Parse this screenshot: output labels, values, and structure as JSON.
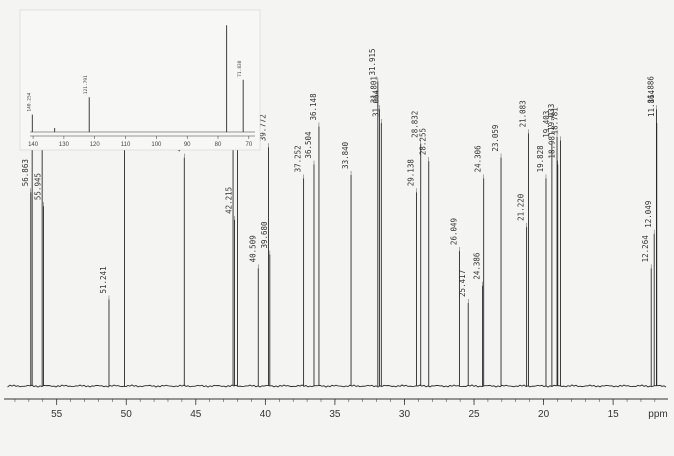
{
  "chart_data": {
    "type": "line",
    "xlabel": "ppm",
    "xlim": [
      58.5,
      11.2
    ],
    "x_reversed": true,
    "x_ticks": [
      55,
      50,
      45,
      40,
      35,
      30,
      25,
      20,
      15
    ],
    "grid": false,
    "peaks": [
      {
        "shift": 56.863,
        "label": "56.863",
        "height": 0.56
      },
      {
        "shift": 56.763,
        "label": "56.763",
        "height": 0.8
      },
      {
        "shift": 56.045,
        "label": "56.045",
        "height": 0.8
      },
      {
        "shift": 55.945,
        "label": "55.945",
        "height": 0.52
      },
      {
        "shift": 51.241,
        "label": "51.241",
        "height": 0.25
      },
      {
        "shift": 50.124,
        "label": "50.124",
        "height": 0.7
      },
      {
        "shift": 45.827,
        "label": "45.827",
        "height": 0.66
      },
      {
        "shift": 42.322,
        "label": "42.322",
        "height": 0.76
      },
      {
        "shift": 42.0,
        "label": "42",
        "height": 0.8
      },
      {
        "shift": 42.215,
        "label": "42.215",
        "height": 0.48
      },
      {
        "shift": 40.509,
        "label": "40.509",
        "height": 0.34
      },
      {
        "shift": 39.772,
        "label": "39.772",
        "height": 0.69
      },
      {
        "shift": 39.68,
        "label": "39.680",
        "height": 0.38
      },
      {
        "shift": 37.252,
        "label": "37.252",
        "height": 0.6
      },
      {
        "shift": 36.504,
        "label": "36.504",
        "height": 0.64
      },
      {
        "shift": 36.148,
        "label": "36.148",
        "height": 0.75
      },
      {
        "shift": 33.84,
        "label": "33.840",
        "height": 0.61
      },
      {
        "shift": 31.915,
        "label": "31.915",
        "height": 0.88
      },
      {
        "shift": 31.801,
        "label": "31.801",
        "height": 0.8
      },
      {
        "shift": 31.664,
        "label": "31.664",
        "height": 0.76
      },
      {
        "shift": 29.138,
        "label": "29.138",
        "height": 0.56
      },
      {
        "shift": 28.832,
        "label": "28.832",
        "height": 0.7
      },
      {
        "shift": 28.255,
        "label": "28.255",
        "height": 0.65
      },
      {
        "shift": 26.049,
        "label": "26.049",
        "height": 0.39
      },
      {
        "shift": 25.417,
        "label": "25.417",
        "height": 0.24
      },
      {
        "shift": 24.386,
        "label": "24.386",
        "height": 0.29
      },
      {
        "shift": 24.306,
        "label": "24.306",
        "height": 0.6
      },
      {
        "shift": 23.059,
        "label": "23.059",
        "height": 0.66
      },
      {
        "shift": 21.22,
        "label": "21.220",
        "height": 0.46
      },
      {
        "shift": 21.083,
        "label": "21.083",
        "height": 0.73
      },
      {
        "shift": 19.828,
        "label": "19.828",
        "height": 0.6
      },
      {
        "shift": 19.403,
        "label": "19.403",
        "height": 0.7
      },
      {
        "shift": 19.033,
        "label": "19.033",
        "height": 0.72
      },
      {
        "shift": 18.981,
        "label": "18.981",
        "height": 0.64
      },
      {
        "shift": 18.781,
        "label": "18.781",
        "height": 0.71
      },
      {
        "shift": 12.264,
        "label": "12.264",
        "height": 0.34
      },
      {
        "shift": 12.049,
        "label": "12.049",
        "height": 0.44
      },
      {
        "shift": 11.886,
        "label": "11.886",
        "height": 0.8
      },
      {
        "shift": 11.864,
        "label": "11.864",
        "height": 0.76
      }
    ],
    "inset": {
      "xlim": [
        141,
        68
      ],
      "x_ticks": [
        140,
        130,
        120,
        110,
        100,
        90,
        80,
        70
      ],
      "peaks": [
        {
          "shift": 140.254,
          "label": "140.254",
          "height": 0.15
        },
        {
          "shift": 121.791,
          "label": "121.791",
          "height": 0.3
        },
        {
          "shift": 77.2,
          "label": "",
          "height": 0.92
        },
        {
          "shift": 71.838,
          "label": "71.838",
          "height": 0.45
        }
      ]
    }
  }
}
